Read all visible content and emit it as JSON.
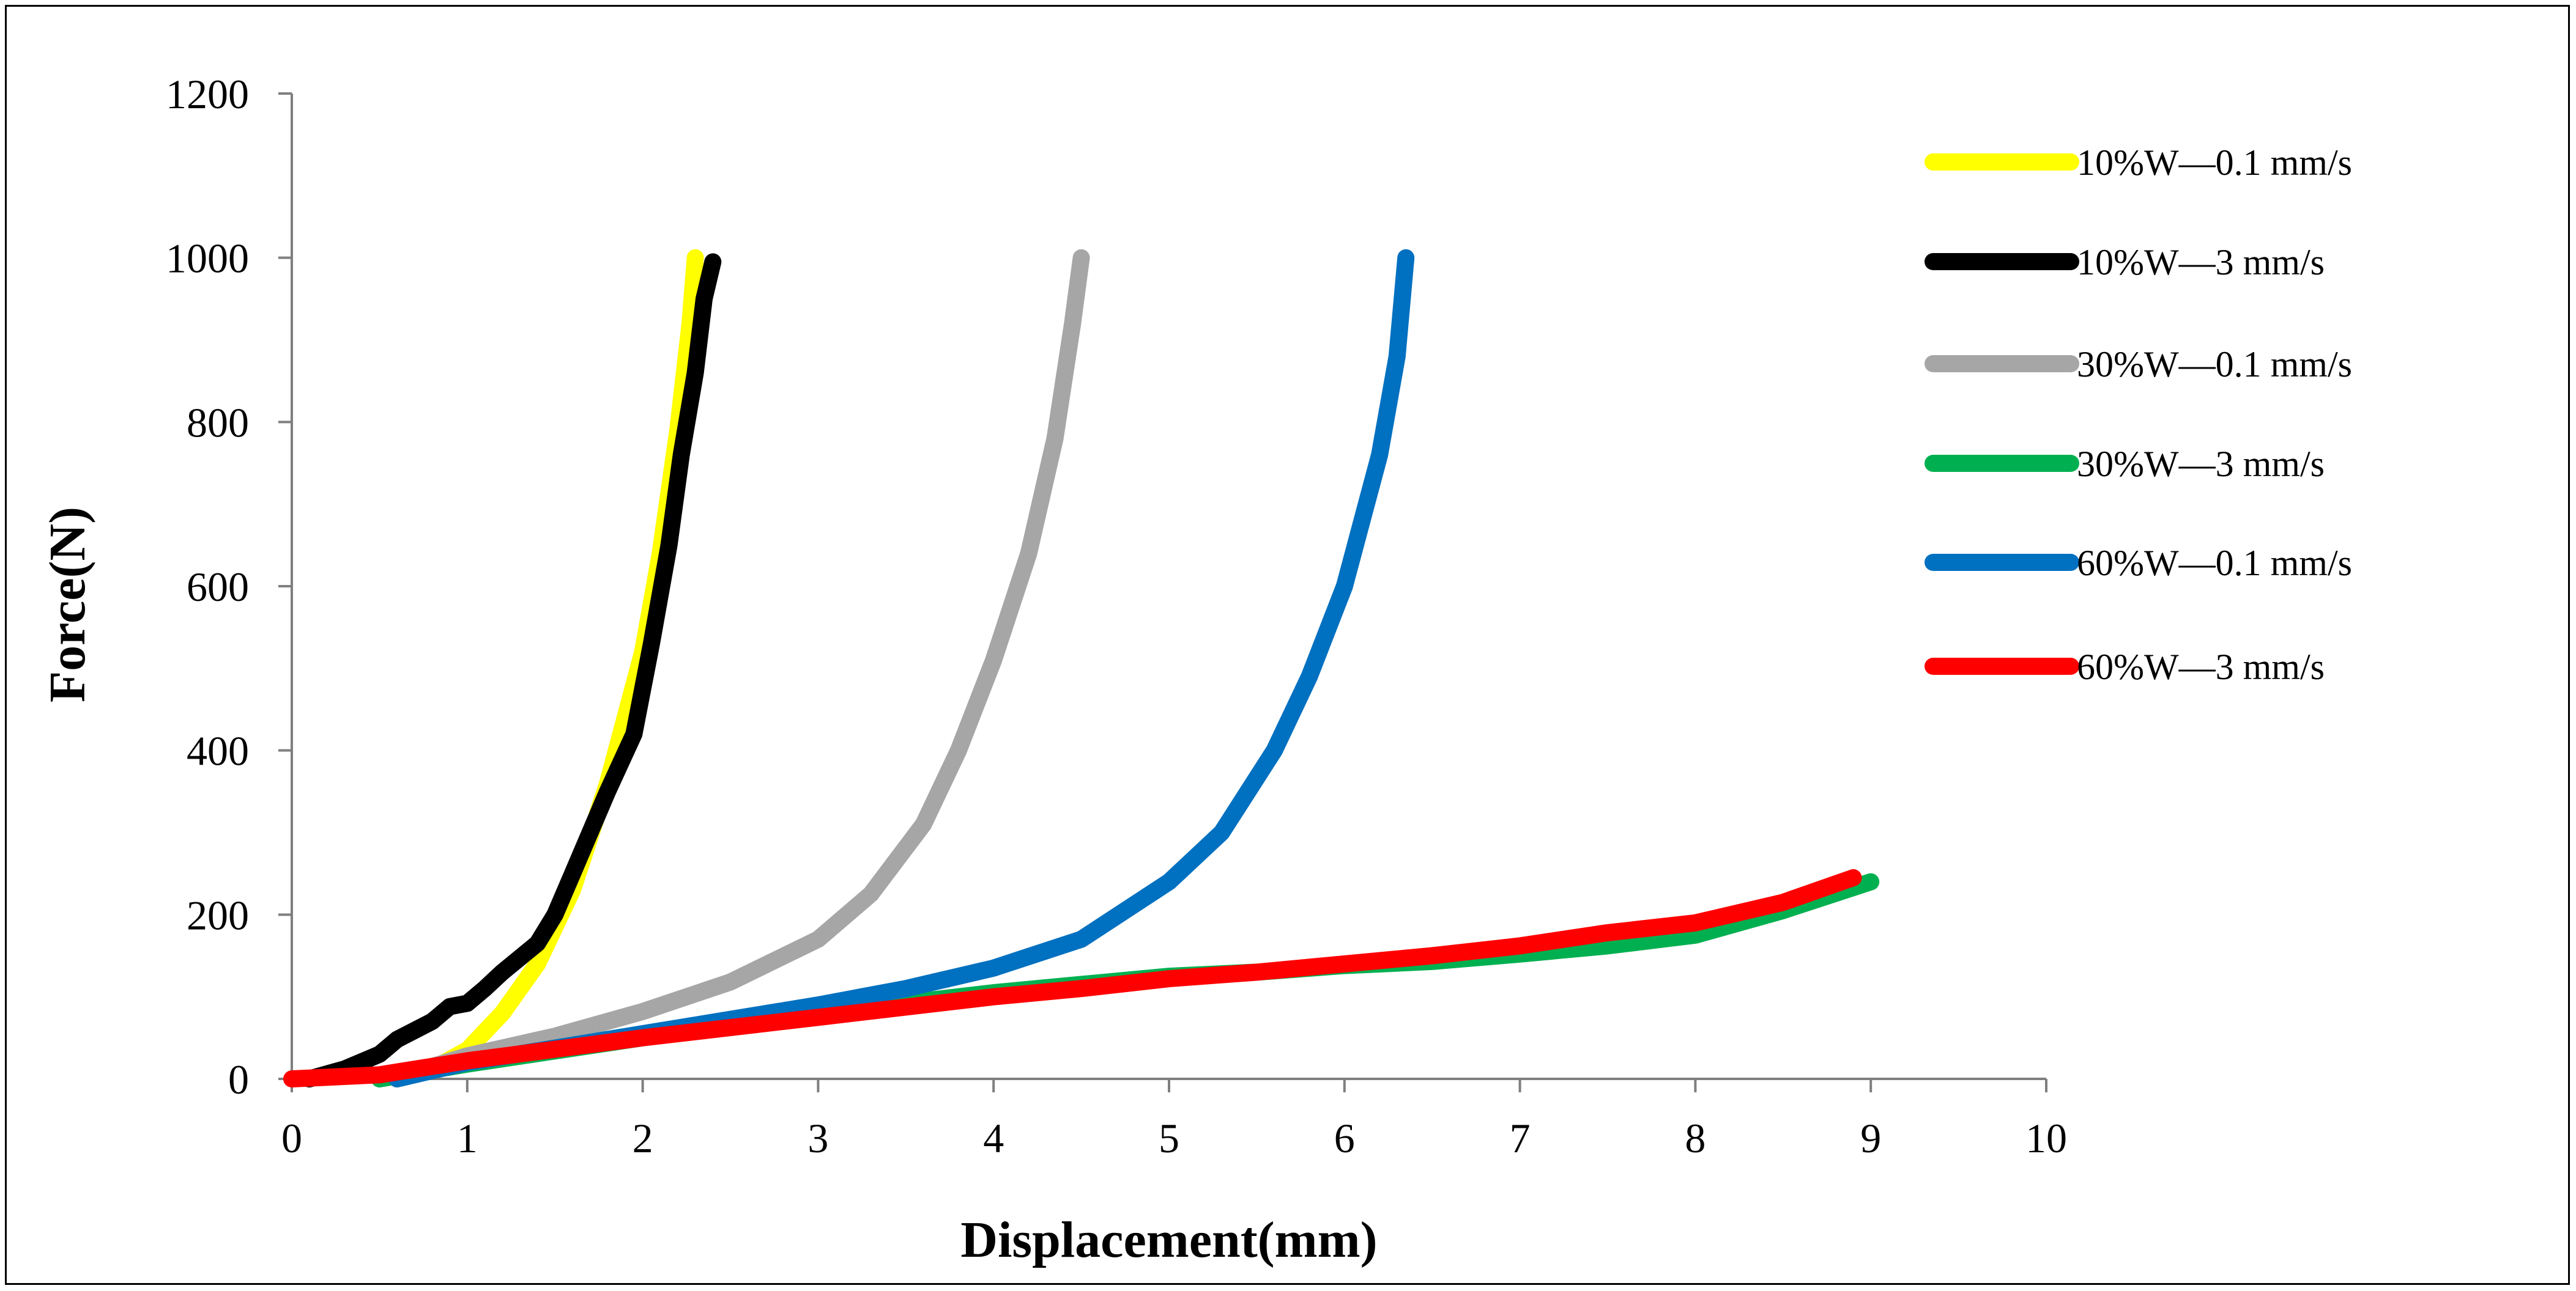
{
  "chart_data": {
    "type": "line",
    "title": "",
    "xlabel": "Displacement(mm)",
    "ylabel": "Force(N)",
    "xlim": [
      0,
      10
    ],
    "ylim": [
      0,
      1200
    ],
    "xticks": [
      0,
      1,
      2,
      3,
      4,
      5,
      6,
      7,
      8,
      9,
      10
    ],
    "yticks": [
      0,
      200,
      400,
      600,
      800,
      1000,
      1200
    ],
    "xtick_labels": [
      "0",
      "1",
      "2",
      "3",
      "4",
      "5",
      "6",
      "7",
      "8",
      "9",
      "10"
    ],
    "ytick_labels": [
      "0",
      "200",
      "400",
      "600",
      "800",
      "1000",
      "1200"
    ],
    "grid": false,
    "legend_position": "right",
    "series": [
      {
        "name": "10%W—0.1 mm/s",
        "color": "#ffff00",
        "points": [
          [
            0.6,
            0
          ],
          [
            0.8,
            12
          ],
          [
            1.0,
            35
          ],
          [
            1.2,
            80
          ],
          [
            1.4,
            140
          ],
          [
            1.6,
            230
          ],
          [
            1.8,
            360
          ],
          [
            2.0,
            520
          ],
          [
            2.1,
            640
          ],
          [
            2.2,
            790
          ],
          [
            2.27,
            920
          ],
          [
            2.3,
            1000
          ]
        ]
      },
      {
        "name": "10%W—3 mm/s",
        "color": "#000000",
        "points": [
          [
            0.1,
            0
          ],
          [
            0.3,
            12
          ],
          [
            0.5,
            30
          ],
          [
            0.6,
            48
          ],
          [
            0.8,
            70
          ],
          [
            0.9,
            88
          ],
          [
            1.0,
            92
          ],
          [
            1.1,
            110
          ],
          [
            1.2,
            130
          ],
          [
            1.4,
            165
          ],
          [
            1.5,
            200
          ],
          [
            1.6,
            250
          ],
          [
            1.8,
            350
          ],
          [
            1.95,
            420
          ],
          [
            2.05,
            530
          ],
          [
            2.15,
            650
          ],
          [
            2.22,
            760
          ],
          [
            2.3,
            860
          ],
          [
            2.35,
            950
          ],
          [
            2.4,
            995
          ]
        ]
      },
      {
        "name": "30%W—0.1 mm/s",
        "color": "#a6a6a6",
        "points": [
          [
            0.5,
            0
          ],
          [
            0.8,
            15
          ],
          [
            1.0,
            28
          ],
          [
            1.5,
            52
          ],
          [
            2.0,
            82
          ],
          [
            2.5,
            118
          ],
          [
            3.0,
            170
          ],
          [
            3.3,
            225
          ],
          [
            3.6,
            310
          ],
          [
            3.8,
            400
          ],
          [
            4.0,
            510
          ],
          [
            4.2,
            640
          ],
          [
            4.35,
            780
          ],
          [
            4.45,
            920
          ],
          [
            4.5,
            1000
          ]
        ]
      },
      {
        "name": "30%W—3 mm/s",
        "color": "#00b050",
        "points": [
          [
            0.5,
            0
          ],
          [
            1.0,
            18
          ],
          [
            2.0,
            50
          ],
          [
            3.0,
            80
          ],
          [
            4.0,
            105
          ],
          [
            4.5,
            115
          ],
          [
            5.0,
            125
          ],
          [
            5.5,
            130
          ],
          [
            6.0,
            138
          ],
          [
            6.5,
            143
          ],
          [
            7.0,
            152
          ],
          [
            7.5,
            162
          ],
          [
            8.0,
            175
          ],
          [
            8.5,
            205
          ],
          [
            9.0,
            240
          ]
        ]
      },
      {
        "name": "60%W—0.1 mm/s",
        "color": "#0070c0",
        "points": [
          [
            0.6,
            0
          ],
          [
            1.0,
            20
          ],
          [
            2.0,
            55
          ],
          [
            3.0,
            90
          ],
          [
            3.5,
            110
          ],
          [
            4.0,
            135
          ],
          [
            4.5,
            170
          ],
          [
            5.0,
            240
          ],
          [
            5.3,
            300
          ],
          [
            5.6,
            400
          ],
          [
            5.8,
            490
          ],
          [
            6.0,
            600
          ],
          [
            6.1,
            680
          ],
          [
            6.2,
            760
          ],
          [
            6.3,
            880
          ],
          [
            6.35,
            1000
          ]
        ]
      },
      {
        "name": "60%W—3 mm/s",
        "color": "#ff0000",
        "points": [
          [
            0.0,
            0
          ],
          [
            0.5,
            5
          ],
          [
            1.0,
            22
          ],
          [
            2.0,
            50
          ],
          [
            3.0,
            75
          ],
          [
            4.0,
            100
          ],
          [
            4.5,
            110
          ],
          [
            5.0,
            122
          ],
          [
            5.5,
            130
          ],
          [
            6.0,
            140
          ],
          [
            6.5,
            150
          ],
          [
            7.0,
            162
          ],
          [
            7.5,
            178
          ],
          [
            8.0,
            190
          ],
          [
            8.5,
            215
          ],
          [
            8.9,
            245
          ]
        ]
      }
    ]
  }
}
